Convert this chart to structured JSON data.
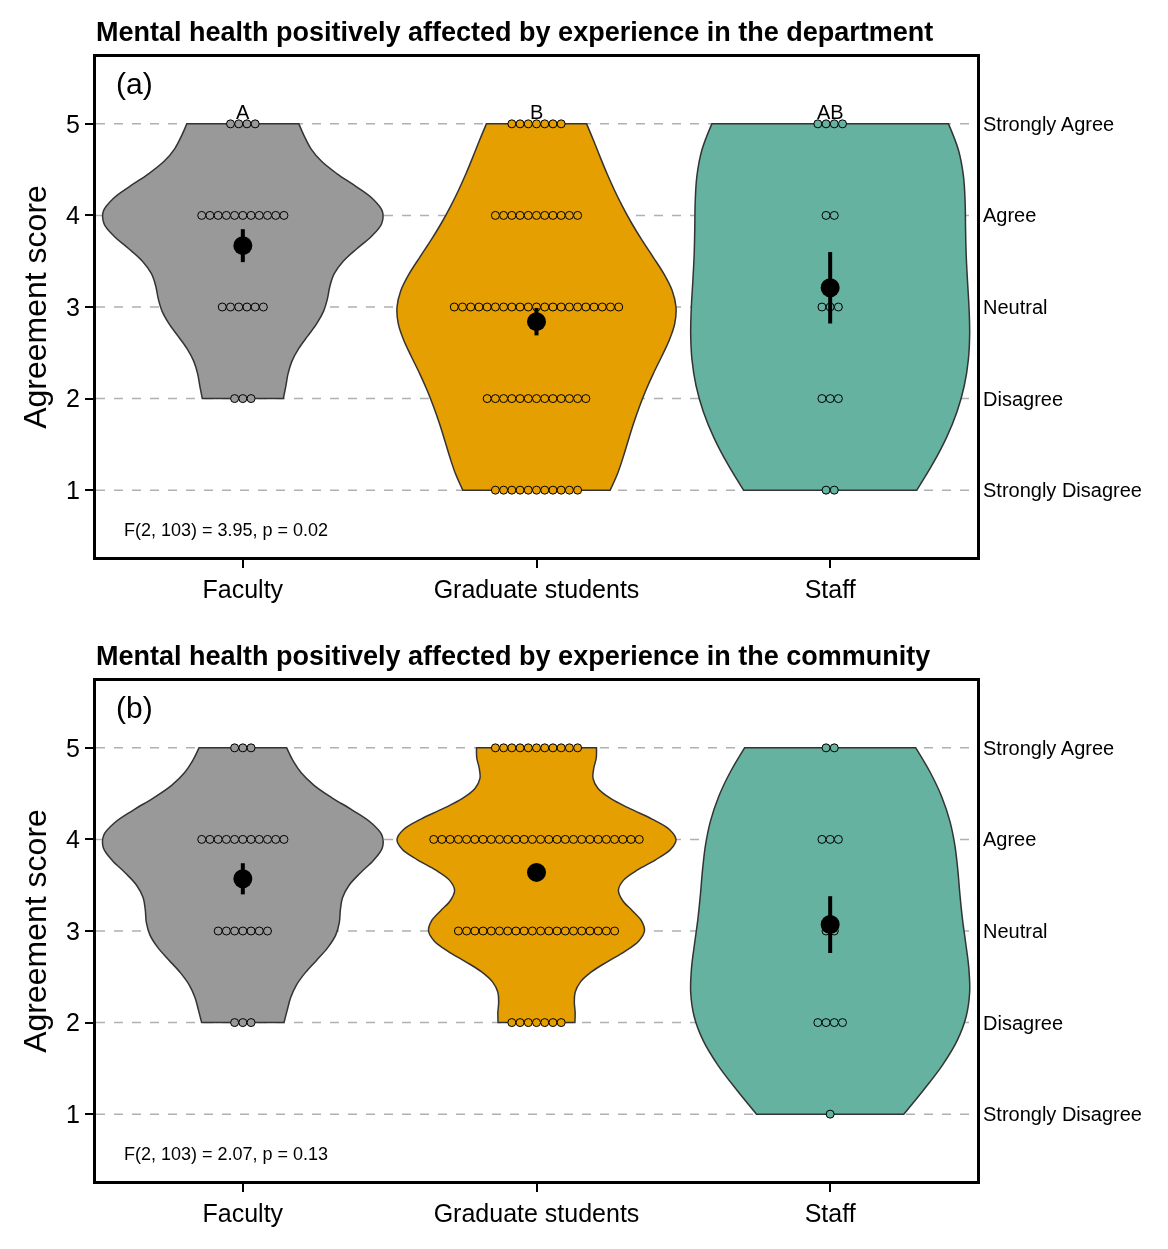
{
  "chart_data": [
    {
      "type": "scatter",
      "title": "Mental health positively affected by experience in the department",
      "ylabel": "Agreement score",
      "categories": [
        "Faculty",
        "Graduate students",
        "Staff"
      ],
      "ylim": [
        0.27,
        5.73
      ],
      "yticks": [
        1,
        2,
        3,
        4,
        5
      ],
      "ref_lines": [
        {
          "axis": "y",
          "value": 1,
          "label": "Strongly Disagree",
          "color": "#b0b0b0",
          "line_style": "dashed"
        },
        {
          "axis": "y",
          "value": 2,
          "label": "Disagree",
          "color": "#b0b0b0",
          "line_style": "dashed"
        },
        {
          "axis": "y",
          "value": 3,
          "label": "Neutral",
          "color": "#b0b0b0",
          "line_style": "dashed"
        },
        {
          "axis": "y",
          "value": 4,
          "label": "Agree",
          "color": "#b0b0b0",
          "line_style": "dashed"
        },
        {
          "axis": "y",
          "value": 5,
          "label": "Strongly Agree",
          "color": "#b0b0b0",
          "line_style": "dashed"
        }
      ],
      "marker": "circle",
      "annotations": [
        "(a)",
        "F(2, 103) = 3.95, p = 0.02",
        "A",
        "B",
        "AB"
      ],
      "series": [
        {
          "color": "#999999",
          "x": [
            "Faculty",
            "Faculty",
            "Faculty",
            "Faculty",
            "Faculty",
            "Faculty",
            "Faculty",
            "Faculty",
            "Faculty",
            "Faculty",
            "Faculty",
            "Faculty",
            "Faculty",
            "Faculty",
            "Faculty",
            "Faculty",
            "Faculty",
            "Faculty",
            "Faculty",
            "Faculty",
            "Faculty",
            "Faculty",
            "Faculty",
            "Faculty"
          ],
          "values": [
            5,
            5,
            5,
            5,
            4,
            4,
            4,
            4,
            4,
            4,
            4,
            4,
            4,
            4,
            4,
            3,
            3,
            3,
            3,
            3,
            3,
            2,
            2,
            2
          ]
        },
        {
          "color": "#e69f00",
          "x": [
            "Graduate students",
            "Graduate students",
            "Graduate students",
            "Graduate students",
            "Graduate students",
            "Graduate students",
            "Graduate students",
            "Graduate students",
            "Graduate students",
            "Graduate students",
            "Graduate students",
            "Graduate students",
            "Graduate students",
            "Graduate students",
            "Graduate students",
            "Graduate students",
            "Graduate students",
            "Graduate students",
            "Graduate students",
            "Graduate students",
            "Graduate students",
            "Graduate students",
            "Graduate students",
            "Graduate students",
            "Graduate students",
            "Graduate students",
            "Graduate students",
            "Graduate students",
            "Graduate students",
            "Graduate students",
            "Graduate students",
            "Graduate students",
            "Graduate students",
            "Graduate students",
            "Graduate students",
            "Graduate students",
            "Graduate students",
            "Graduate students",
            "Graduate students",
            "Graduate students",
            "Graduate students",
            "Graduate students",
            "Graduate students",
            "Graduate students",
            "Graduate students",
            "Graduate students",
            "Graduate students",
            "Graduate students",
            "Graduate students",
            "Graduate students",
            "Graduate students",
            "Graduate students",
            "Graduate students",
            "Graduate students",
            "Graduate students",
            "Graduate students",
            "Graduate students",
            "Graduate students",
            "Graduate students",
            "Graduate students",
            "Graduate students",
            "Graduate students",
            "Graduate students"
          ],
          "values": [
            5,
            5,
            5,
            5,
            5,
            5,
            5,
            4,
            4,
            4,
            4,
            4,
            4,
            4,
            4,
            4,
            4,
            4,
            3,
            3,
            3,
            3,
            3,
            3,
            3,
            3,
            3,
            3,
            3,
            3,
            3,
            3,
            3,
            3,
            3,
            3,
            3,
            3,
            3,
            2,
            2,
            2,
            2,
            2,
            2,
            2,
            2,
            2,
            2,
            2,
            2,
            2,
            1,
            1,
            1,
            1,
            1,
            1,
            1,
            1,
            1,
            1,
            1
          ]
        },
        {
          "color": "#66b2a0",
          "x": [
            "Staff",
            "Staff",
            "Staff",
            "Staff",
            "Staff",
            "Staff",
            "Staff",
            "Staff",
            "Staff",
            "Staff",
            "Staff",
            "Staff",
            "Staff",
            "Staff"
          ],
          "values": [
            5,
            5,
            5,
            5,
            4,
            4,
            3,
            3,
            3,
            2,
            2,
            2,
            1,
            1
          ]
        },
        {
          "color": "#000000",
          "x": [
            "Faculty",
            "Graduate students",
            "Staff"
          ],
          "values": [
            3.67,
            2.84,
            3.21
          ],
          "errors": [
            0.18,
            0.15,
            0.39
          ]
        }
      ]
    },
    {
      "type": "scatter",
      "title": "Mental health positively affected by experience in the community",
      "ylabel": "Agreement score",
      "categories": [
        "Faculty",
        "Graduate students",
        "Staff"
      ],
      "ylim": [
        0.27,
        5.73
      ],
      "yticks": [
        1,
        2,
        3,
        4,
        5
      ],
      "ref_lines": [
        {
          "axis": "y",
          "value": 1,
          "label": "Strongly Disagree",
          "color": "#b0b0b0",
          "line_style": "dashed"
        },
        {
          "axis": "y",
          "value": 2,
          "label": "Disagree",
          "color": "#b0b0b0",
          "line_style": "dashed"
        },
        {
          "axis": "y",
          "value": 3,
          "label": "Neutral",
          "color": "#b0b0b0",
          "line_style": "dashed"
        },
        {
          "axis": "y",
          "value": 4,
          "label": "Agree",
          "color": "#b0b0b0",
          "line_style": "dashed"
        },
        {
          "axis": "y",
          "value": 5,
          "label": "Strongly Agree",
          "color": "#b0b0b0",
          "line_style": "dashed"
        }
      ],
      "marker": "circle",
      "annotations": [
        "(b)",
        "F(2, 103) = 2.07, p = 0.13"
      ],
      "series": [
        {
          "color": "#999999",
          "x": [
            "Faculty",
            "Faculty",
            "Faculty",
            "Faculty",
            "Faculty",
            "Faculty",
            "Faculty",
            "Faculty",
            "Faculty",
            "Faculty",
            "Faculty",
            "Faculty",
            "Faculty",
            "Faculty",
            "Faculty",
            "Faculty",
            "Faculty",
            "Faculty",
            "Faculty",
            "Faculty",
            "Faculty",
            "Faculty",
            "Faculty",
            "Faculty"
          ],
          "values": [
            5,
            5,
            5,
            4,
            4,
            4,
            4,
            4,
            4,
            4,
            4,
            4,
            4,
            4,
            3,
            3,
            3,
            3,
            3,
            3,
            3,
            2,
            2,
            2
          ]
        },
        {
          "color": "#e69f00",
          "x": [
            "Graduate students",
            "Graduate students",
            "Graduate students",
            "Graduate students",
            "Graduate students",
            "Graduate students",
            "Graduate students",
            "Graduate students",
            "Graduate students",
            "Graduate students",
            "Graduate students",
            "Graduate students",
            "Graduate students",
            "Graduate students",
            "Graduate students",
            "Graduate students",
            "Graduate students",
            "Graduate students",
            "Graduate students",
            "Graduate students",
            "Graduate students",
            "Graduate students",
            "Graduate students",
            "Graduate students",
            "Graduate students",
            "Graduate students",
            "Graduate students",
            "Graduate students",
            "Graduate students",
            "Graduate students",
            "Graduate students",
            "Graduate students",
            "Graduate students",
            "Graduate students",
            "Graduate students",
            "Graduate students",
            "Graduate students",
            "Graduate students",
            "Graduate students",
            "Graduate students",
            "Graduate students",
            "Graduate students",
            "Graduate students",
            "Graduate students",
            "Graduate students",
            "Graduate students",
            "Graduate students",
            "Graduate students",
            "Graduate students",
            "Graduate students",
            "Graduate students",
            "Graduate students",
            "Graduate students",
            "Graduate students",
            "Graduate students",
            "Graduate students",
            "Graduate students",
            "Graduate students",
            "Graduate students",
            "Graduate students",
            "Graduate students",
            "Graduate students",
            "Graduate students",
            "Graduate students"
          ],
          "values": [
            5,
            5,
            5,
            5,
            5,
            5,
            5,
            5,
            5,
            5,
            5,
            4,
            4,
            4,
            4,
            4,
            4,
            4,
            4,
            4,
            4,
            4,
            4,
            4,
            4,
            4,
            4,
            4,
            4,
            4,
            4,
            4,
            4,
            4,
            4,
            4,
            4,
            3,
            3,
            3,
            3,
            3,
            3,
            3,
            3,
            3,
            3,
            3,
            3,
            3,
            3,
            3,
            3,
            3,
            3,
            3,
            3,
            2,
            2,
            2,
            2,
            2,
            2,
            2
          ]
        },
        {
          "color": "#66b2a0",
          "x": [
            "Staff",
            "Staff",
            "Staff",
            "Staff",
            "Staff",
            "Staff",
            "Staff",
            "Staff",
            "Staff",
            "Staff",
            "Staff",
            "Staff"
          ],
          "values": [
            5,
            5,
            4,
            4,
            4,
            3,
            3,
            2,
            2,
            2,
            2,
            1
          ]
        },
        {
          "color": "#000000",
          "x": [
            "Faculty",
            "Graduate students",
            "Staff"
          ],
          "values": [
            3.57,
            3.64,
            3.07
          ],
          "errors": [
            0.17,
            null,
            0.31
          ]
        }
      ]
    }
  ]
}
